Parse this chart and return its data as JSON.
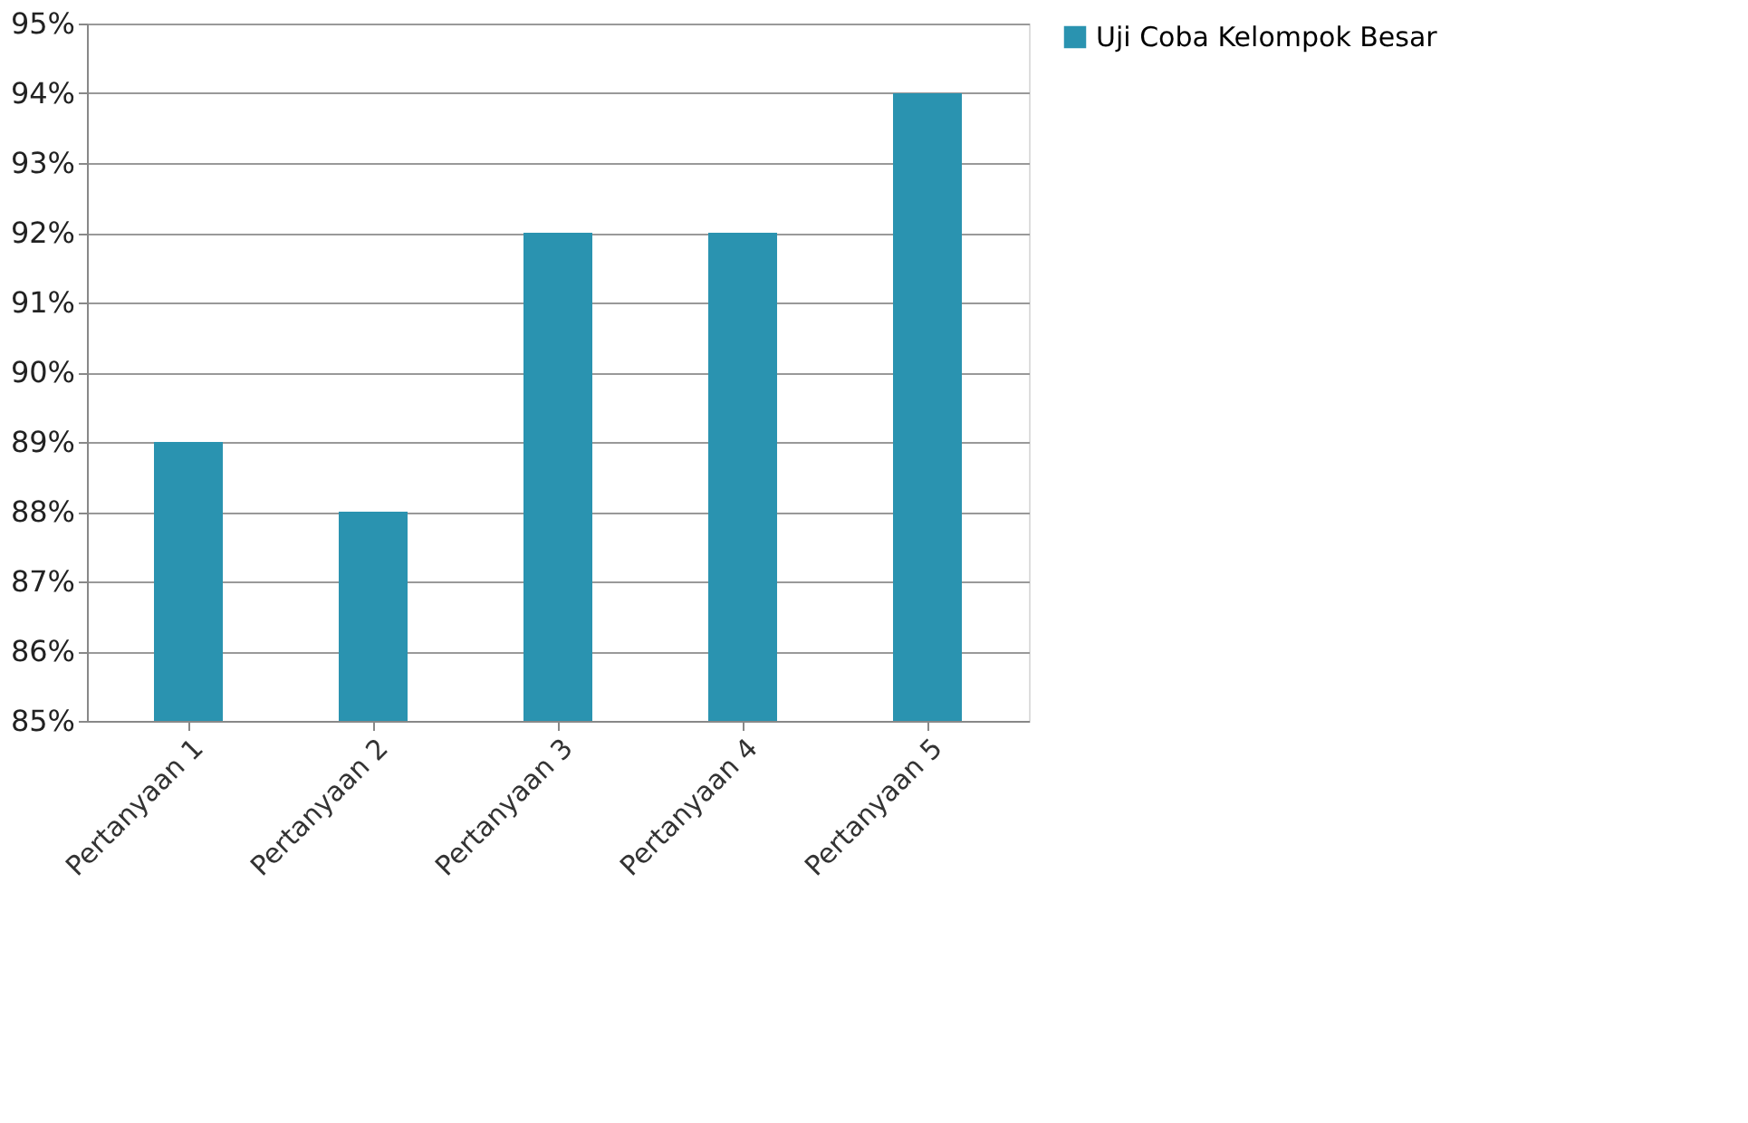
{
  "chart_data": {
    "type": "bar",
    "categories": [
      "Pertanyaan 1",
      "Pertanyaan 2",
      "Pertanyaan 3",
      "Pertanyaan 4",
      "Pertanyaan 5"
    ],
    "series": [
      {
        "name": "Uji Coba Kelompok Besar",
        "color": "#2a93b0",
        "values": [
          89,
          88,
          92,
          92,
          94
        ]
      }
    ],
    "ylim": [
      85,
      95
    ],
    "yticks": [
      {
        "value": 85,
        "label": "85%"
      },
      {
        "value": 86,
        "label": "86%"
      },
      {
        "value": 87,
        "label": "87%"
      },
      {
        "value": 88,
        "label": "88%"
      },
      {
        "value": 89,
        "label": "89%"
      },
      {
        "value": 90,
        "label": "90%"
      },
      {
        "value": 91,
        "label": "91%"
      },
      {
        "value": 92,
        "label": "92%"
      },
      {
        "value": 93,
        "label": "93%"
      },
      {
        "value": 94,
        "label": "94%"
      },
      {
        "value": 95,
        "label": "95%"
      }
    ],
    "grid": "y",
    "legend": "right"
  }
}
